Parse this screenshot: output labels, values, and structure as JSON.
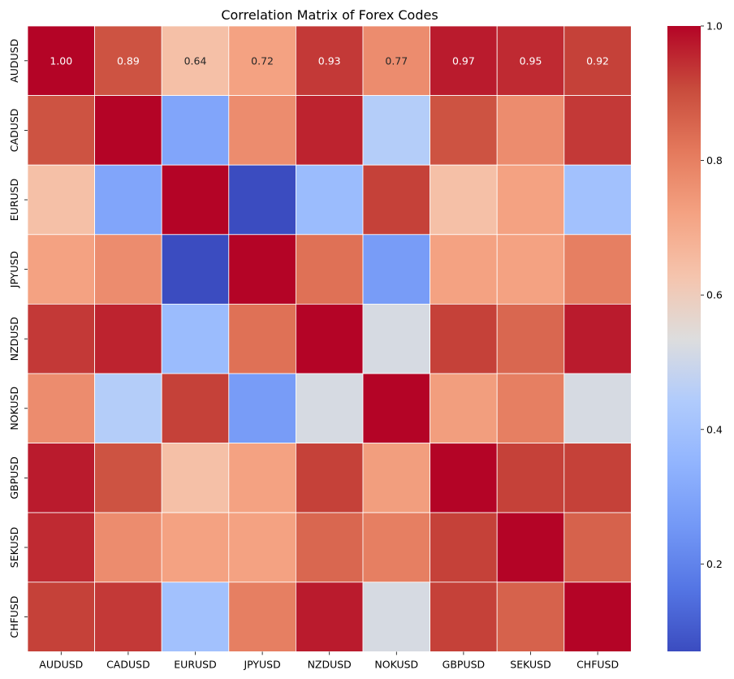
{
  "chart_data": {
    "type": "heatmap",
    "title": "Correlation Matrix of Forex Codes",
    "row_labels": [
      "AUDUSD",
      "CADUSD",
      "EURUSD",
      "JPYUSD",
      "NZDUSD",
      "NOKUSD",
      "GBPUSD",
      "SEKUSD",
      "CHFUSD"
    ],
    "col_labels": [
      "AUDUSD",
      "CADUSD",
      "EURUSD",
      "JPYUSD",
      "NZDUSD",
      "NOKUSD",
      "GBPUSD",
      "SEKUSD",
      "CHFUSD"
    ],
    "values": [
      [
        1.0,
        0.89,
        0.64,
        0.72,
        0.93,
        0.77,
        0.97,
        0.95,
        0.92
      ],
      [
        0.89,
        1.0,
        0.3,
        0.77,
        0.96,
        0.45,
        0.89,
        0.77,
        0.93
      ],
      [
        0.64,
        0.3,
        1.0,
        0.07,
        0.38,
        0.92,
        0.64,
        0.72,
        0.4
      ],
      [
        0.72,
        0.77,
        0.07,
        1.0,
        0.83,
        0.27,
        0.72,
        0.72,
        0.8
      ],
      [
        0.93,
        0.96,
        0.38,
        0.83,
        1.0,
        0.52,
        0.92,
        0.85,
        0.97
      ],
      [
        0.77,
        0.45,
        0.92,
        0.27,
        0.52,
        1.0,
        0.73,
        0.8,
        0.52
      ],
      [
        0.97,
        0.89,
        0.64,
        0.72,
        0.92,
        0.73,
        1.0,
        0.92,
        0.92
      ],
      [
        0.95,
        0.77,
        0.72,
        0.72,
        0.85,
        0.8,
        0.92,
        1.0,
        0.86
      ],
      [
        0.92,
        0.93,
        0.4,
        0.8,
        0.97,
        0.52,
        0.92,
        0.86,
        1.0
      ]
    ],
    "annotated_row": 0,
    "annotation_format": "0.00",
    "colormap": "coolwarm",
    "vmin": 0.07,
    "vmax": 1.0,
    "colorbar_ticks": [
      0.2,
      0.4,
      0.6,
      0.8,
      1.0
    ],
    "colorbar_tick_labels": [
      "0.2",
      "0.4",
      "0.6",
      "0.8",
      "1.0"
    ],
    "cell_border_color": "#ffffff"
  }
}
